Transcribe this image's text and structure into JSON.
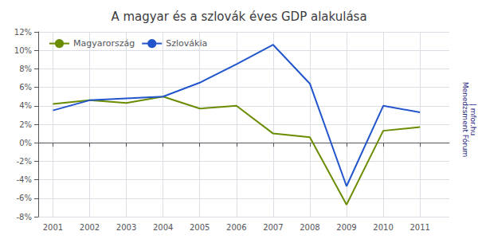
{
  "chart_data": {
    "type": "line",
    "title": "A magyar és a szlovák éves GDP alakulása",
    "x": [
      2001,
      2002,
      2003,
      2004,
      2005,
      2006,
      2007,
      2008,
      2009,
      2010,
      2011
    ],
    "series": [
      {
        "name": "Magyarország",
        "color": "#6a8c00",
        "values": [
          4.2,
          4.6,
          4.3,
          5.0,
          3.7,
          4.0,
          1.0,
          0.6,
          -6.7,
          1.3,
          1.7
        ]
      },
      {
        "name": "Szlovákia",
        "color": "#2255cc",
        "values": [
          3.5,
          4.6,
          4.8,
          5.0,
          6.5,
          8.5,
          10.6,
          6.4,
          -4.7,
          4.0,
          3.3
        ]
      }
    ],
    "xlim": [
      2000.6,
      2011.8
    ],
    "xticks": [
      2001,
      2002,
      2003,
      2004,
      2005,
      2006,
      2007,
      2008,
      2009,
      2010,
      2011
    ],
    "ylim": [
      -8,
      12
    ],
    "yticks": [
      {
        "value": -8,
        "label": "-8%"
      },
      {
        "value": -6,
        "label": "-6%"
      },
      {
        "value": -4,
        "label": "-4%"
      },
      {
        "value": -2,
        "label": "-2%"
      },
      {
        "value": 0,
        "label": "0%"
      },
      {
        "value": 2,
        "label": "2%"
      },
      {
        "value": 4,
        "label": "4%"
      },
      {
        "value": 6,
        "label": "6%"
      },
      {
        "value": 8,
        "label": "8%"
      },
      {
        "value": 10,
        "label": "10%"
      },
      {
        "value": 12,
        "label": "12%"
      }
    ],
    "grid": true,
    "legend": "upper left",
    "annotations": [
      "Menedzsment Fórum",
      "| mfor.hu"
    ]
  }
}
